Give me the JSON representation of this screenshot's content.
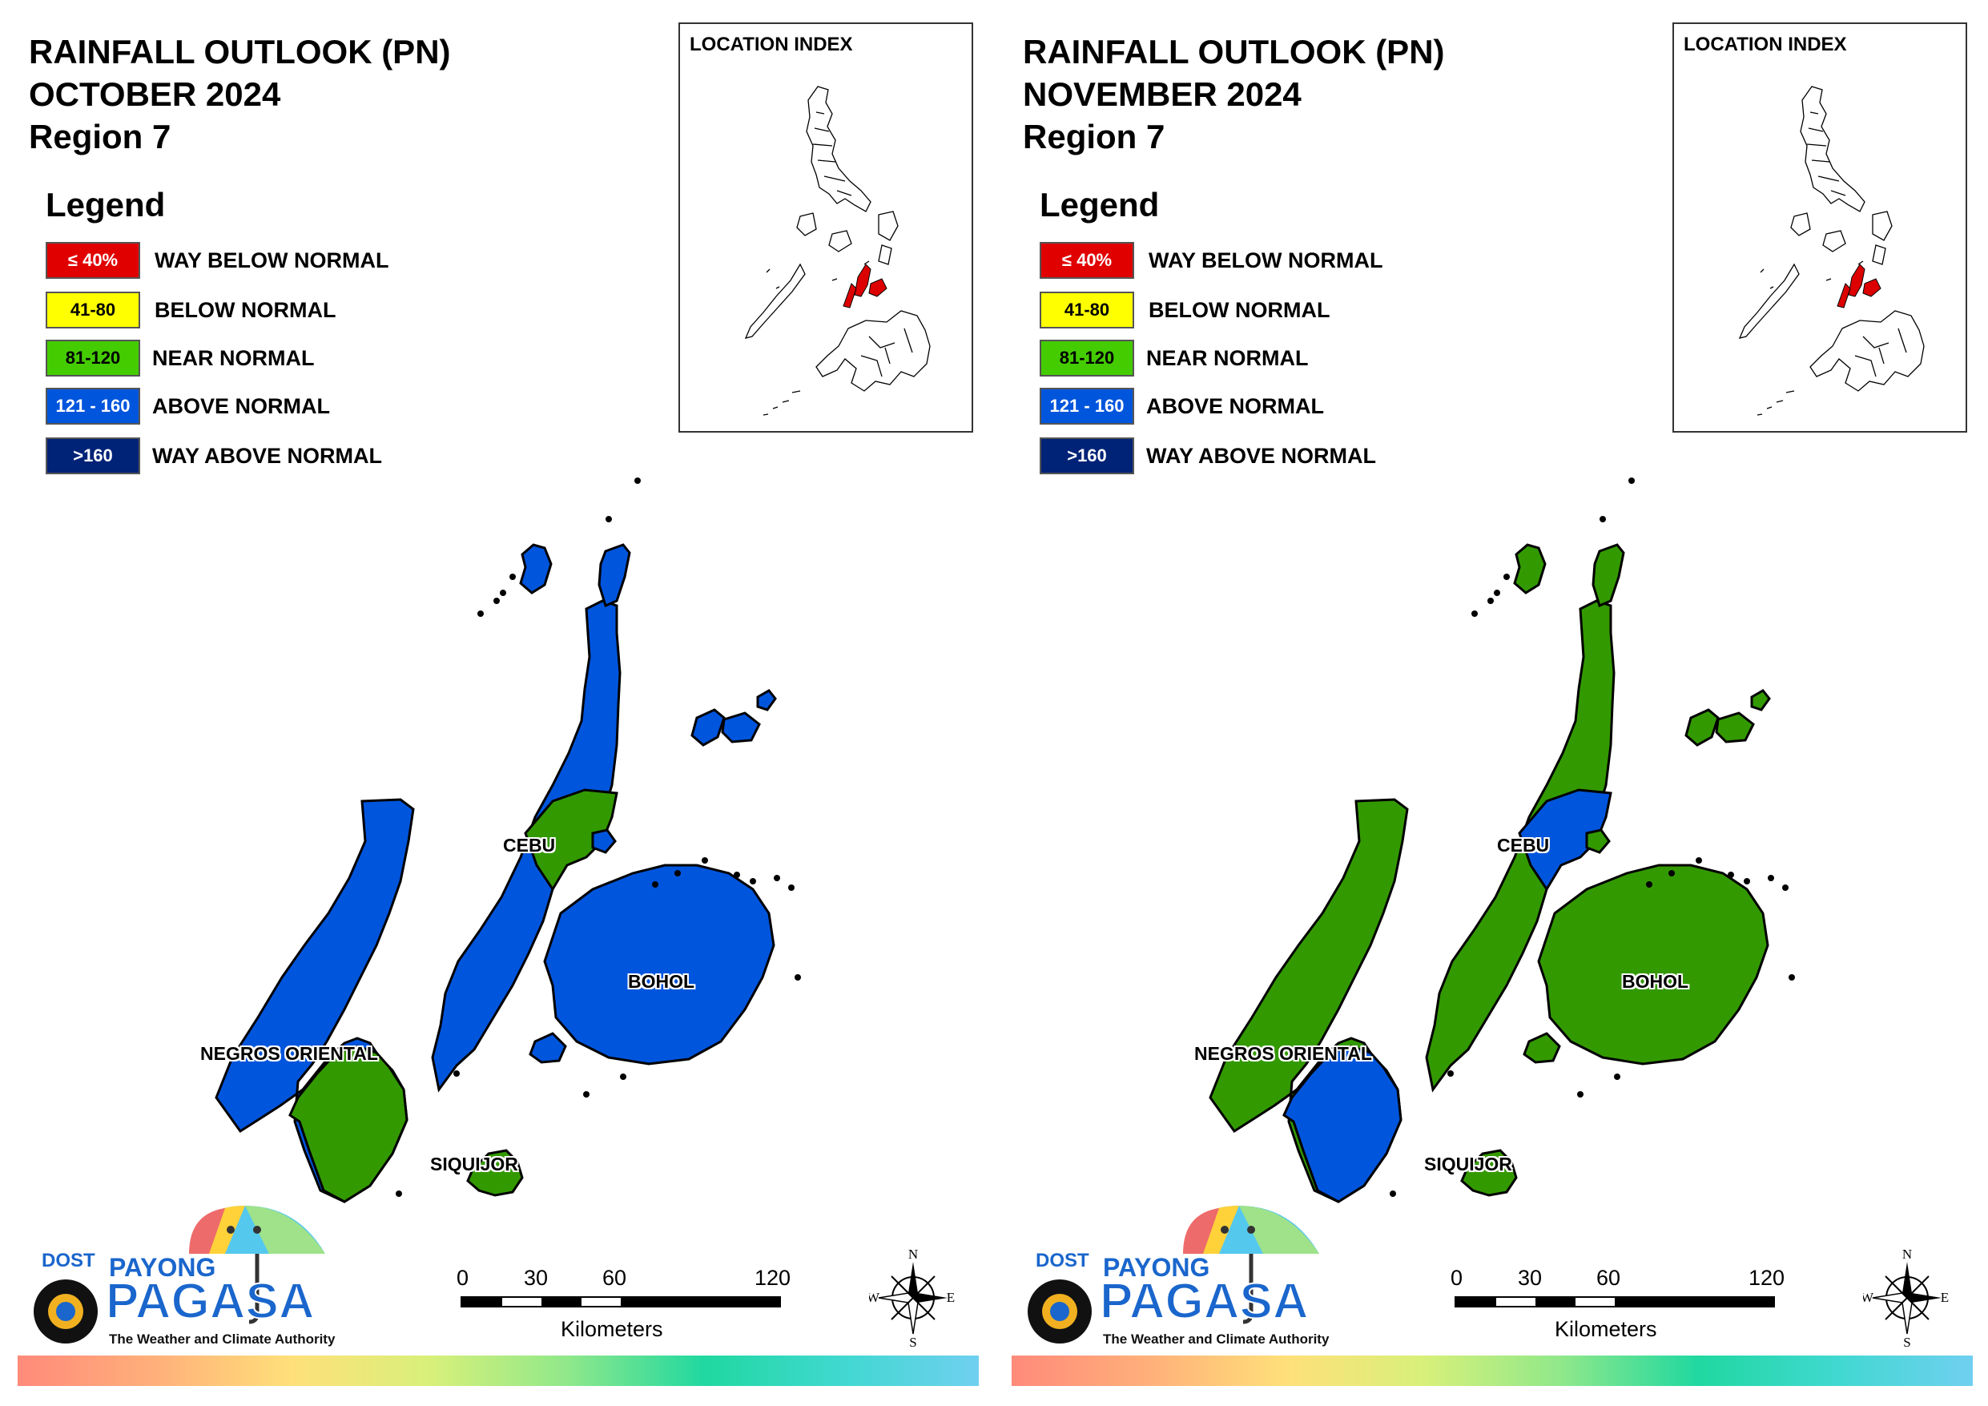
{
  "panels": [
    {
      "id": "october",
      "title_line1": "RAINFALL OUTLOOK (PN)",
      "title_line2": "OCTOBER 2024",
      "title_line3": "Region 7",
      "region_colors": {
        "negros_main": "#0055dd",
        "negros_south": "#339900",
        "cebu_main": "#0055dd",
        "cebu_mid": "#339900",
        "bohol": "#0055dd",
        "siquijor": "#339900",
        "camotes": "#0055dd",
        "bantayan": "#0055dd"
      },
      "outlook": {
        "negros_oriental_north": "ABOVE NORMAL",
        "negros_oriental_south": "NEAR NORMAL",
        "cebu_north_south": "ABOVE NORMAL",
        "cebu_central": "NEAR NORMAL",
        "bohol": "ABOVE NORMAL",
        "siquijor": "NEAR NORMAL"
      }
    },
    {
      "id": "november",
      "title_line1": "RAINFALL OUTLOOK (PN)",
      "title_line2": "NOVEMBER 2024",
      "title_line3": "Region 7",
      "region_colors": {
        "negros_main": "#339900",
        "negros_south": "#0055dd",
        "cebu_main": "#339900",
        "cebu_mid": "#0055dd",
        "bohol": "#339900",
        "siquijor": "#339900",
        "camotes": "#339900",
        "bantayan": "#339900"
      },
      "outlook": {
        "negros_oriental_north": "NEAR NORMAL",
        "negros_oriental_south": "ABOVE NORMAL",
        "cebu_north_south": "NEAR NORMAL",
        "cebu_central": "ABOVE NORMAL",
        "bohol": "NEAR NORMAL",
        "siquijor": "NEAR NORMAL"
      }
    }
  ],
  "legend": {
    "title": "Legend",
    "items": [
      {
        "range": "≤ 40%",
        "label": "WAY BELOW NORMAL",
        "color": "#e00000",
        "text_color": "#ffffff"
      },
      {
        "range": "41-80",
        "label": "BELOW NORMAL",
        "color": "#ffff00",
        "text_color": "#000000"
      },
      {
        "range": "81-120",
        "label": "NEAR NORMAL",
        "color": "#44cc00",
        "text_color": "#000000"
      },
      {
        "range": "121 - 160",
        "label": "ABOVE NORMAL",
        "color": "#0055dd",
        "text_color": "#ffffff"
      },
      {
        "range": ">160",
        "label": "WAY ABOVE NORMAL",
        "color": "#002277",
        "text_color": "#ffffff"
      }
    ]
  },
  "inset": {
    "title": "LOCATION INDEX",
    "highlight_color": "#dd0000"
  },
  "provinces": {
    "cebu": "CEBU",
    "bohol": "BOHOL",
    "negros": "NEGROS ORIENTAL",
    "siquijor": "SIQUIJOR"
  },
  "scalebar": {
    "ticks": [
      "0",
      "30",
      "60",
      "120"
    ],
    "unit": "Kilometers"
  },
  "compass": {
    "n": "N",
    "s": "S",
    "e": "E",
    "w": "W"
  },
  "logo": {
    "dost": "DOST",
    "payong": "PAYONG",
    "pagasa": "PAGASA",
    "tagline": "The Weather and Climate Authority"
  }
}
